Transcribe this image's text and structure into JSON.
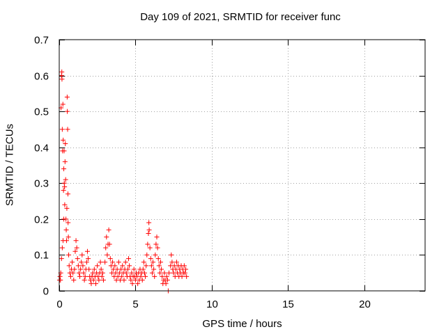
{
  "chart_data": {
    "type": "scatter",
    "title": "Day 109 of 2021, SRMTID for receiver func",
    "xlabel": "GPS time / hours",
    "ylabel": "SRMTID / TECUs",
    "xlim": [
      0,
      24
    ],
    "ylim": [
      0,
      0.7
    ],
    "xticks": [
      0,
      5,
      10,
      15,
      20
    ],
    "xtick_labels": [
      "0",
      "5",
      "10",
      "15",
      "20"
    ],
    "yticks": [
      0,
      0.1,
      0.2,
      0.3,
      0.4,
      0.5,
      0.6,
      0.7
    ],
    "ytick_labels": [
      "0",
      "0.1",
      "0.2",
      "0.3",
      "0.4",
      "0.5",
      "0.6",
      "0.7"
    ],
    "grid": true,
    "marker": "+",
    "color": "#ff0000",
    "series": [
      {
        "name": "SRMTID",
        "points": [
          [
            0.02,
            0.03
          ],
          [
            0.05,
            0.04
          ],
          [
            0.08,
            0.03
          ],
          [
            0.1,
            0.05
          ],
          [
            0.12,
            0.51
          ],
          [
            0.15,
            0.6
          ],
          [
            0.17,
            0.61
          ],
          [
            0.18,
            0.59
          ],
          [
            0.2,
            0.45
          ],
          [
            0.22,
            0.39
          ],
          [
            0.24,
            0.52
          ],
          [
            0.26,
            0.42
          ],
          [
            0.28,
            0.28
          ],
          [
            0.3,
            0.34
          ],
          [
            0.32,
            0.39
          ],
          [
            0.33,
            0.3
          ],
          [
            0.35,
            0.29
          ],
          [
            0.36,
            0.24
          ],
          [
            0.38,
            0.36
          ],
          [
            0.4,
            0.41
          ],
          [
            0.42,
            0.31
          ],
          [
            0.44,
            0.2
          ],
          [
            0.46,
            0.17
          ],
          [
            0.48,
            0.14
          ],
          [
            0.5,
            0.23
          ],
          [
            0.52,
            0.54
          ],
          [
            0.53,
            0.5
          ],
          [
            0.55,
            0.45
          ],
          [
            0.57,
            0.27
          ],
          [
            0.58,
            0.19
          ],
          [
            0.6,
            0.15
          ],
          [
            0.3,
            0.2
          ],
          [
            0.25,
            0.14
          ],
          [
            0.2,
            0.12
          ],
          [
            0.15,
            0.09
          ],
          [
            0.62,
            0.1
          ],
          [
            0.65,
            0.07
          ],
          [
            0.7,
            0.05
          ],
          [
            0.75,
            0.04
          ],
          [
            0.8,
            0.06
          ],
          [
            0.85,
            0.08
          ],
          [
            0.9,
            0.05
          ],
          [
            0.95,
            0.03
          ],
          [
            1.0,
            0.06
          ],
          [
            1.05,
            0.11
          ],
          [
            1.1,
            0.14
          ],
          [
            1.15,
            0.12
          ],
          [
            1.2,
            0.09
          ],
          [
            1.25,
            0.07
          ],
          [
            1.3,
            0.05
          ],
          [
            1.35,
            0.04
          ],
          [
            1.4,
            0.06
          ],
          [
            1.45,
            0.08
          ],
          [
            1.5,
            0.1
          ],
          [
            1.55,
            0.07
          ],
          [
            1.6,
            0.05
          ],
          [
            1.65,
            0.03
          ],
          [
            1.7,
            0.04
          ],
          [
            1.75,
            0.06
          ],
          [
            1.8,
            0.08
          ],
          [
            1.85,
            0.11
          ],
          [
            1.9,
            0.09
          ],
          [
            1.95,
            0.06
          ],
          [
            2.0,
            0.04
          ],
          [
            2.05,
            0.03
          ],
          [
            2.1,
            0.02
          ],
          [
            2.15,
            0.04
          ],
          [
            2.2,
            0.05
          ],
          [
            2.25,
            0.03
          ],
          [
            2.3,
            0.06
          ],
          [
            2.35,
            0.04
          ],
          [
            2.4,
            0.02
          ],
          [
            2.45,
            0.05
          ],
          [
            2.5,
            0.07
          ],
          [
            2.55,
            0.04
          ],
          [
            2.6,
            0.03
          ],
          [
            2.65,
            0.05
          ],
          [
            2.7,
            0.08
          ],
          [
            2.75,
            0.06
          ],
          [
            2.8,
            0.04
          ],
          [
            2.85,
            0.05
          ],
          [
            2.9,
            0.03
          ],
          [
            3.0,
            0.08
          ],
          [
            3.05,
            0.12
          ],
          [
            3.1,
            0.15
          ],
          [
            3.15,
            0.1
          ],
          [
            3.2,
            0.13
          ],
          [
            3.25,
            0.17
          ],
          [
            3.3,
            0.13
          ],
          [
            3.35,
            0.09
          ],
          [
            3.4,
            0.07
          ],
          [
            3.45,
            0.05
          ],
          [
            3.5,
            0.08
          ],
          [
            3.55,
            0.06
          ],
          [
            3.6,
            0.04
          ],
          [
            3.65,
            0.07
          ],
          [
            3.7,
            0.05
          ],
          [
            3.75,
            0.03
          ],
          [
            3.8,
            0.06
          ],
          [
            3.85,
            0.04
          ],
          [
            3.9,
            0.08
          ],
          [
            3.95,
            0.05
          ],
          [
            4.0,
            0.03
          ],
          [
            4.05,
            0.06
          ],
          [
            4.1,
            0.04
          ],
          [
            4.15,
            0.07
          ],
          [
            4.2,
            0.05
          ],
          [
            4.25,
            0.03
          ],
          [
            4.3,
            0.06
          ],
          [
            4.35,
            0.08
          ],
          [
            4.4,
            0.05
          ],
          [
            4.45,
            0.04
          ],
          [
            4.5,
            0.06
          ],
          [
            4.55,
            0.09
          ],
          [
            4.6,
            0.07
          ],
          [
            4.65,
            0.04
          ],
          [
            4.7,
            0.03
          ],
          [
            4.75,
            0.05
          ],
          [
            4.8,
            0.02
          ],
          [
            4.85,
            0.04
          ],
          [
            4.9,
            0.06
          ],
          [
            4.95,
            0.04
          ],
          [
            5.0,
            0.03
          ],
          [
            5.05,
            0.05
          ],
          [
            5.1,
            0.04
          ],
          [
            5.15,
            0.02
          ],
          [
            5.2,
            0.05
          ],
          [
            5.25,
            0.03
          ],
          [
            5.3,
            0.06
          ],
          [
            5.35,
            0.04
          ],
          [
            5.4,
            0.05
          ],
          [
            5.45,
            0.03
          ],
          [
            5.5,
            0.06
          ],
          [
            5.55,
            0.08
          ],
          [
            5.6,
            0.05
          ],
          [
            5.65,
            0.04
          ],
          [
            5.7,
            0.07
          ],
          [
            5.75,
            0.1
          ],
          [
            5.8,
            0.13
          ],
          [
            5.85,
            0.16
          ],
          [
            5.88,
            0.19
          ],
          [
            5.9,
            0.17
          ],
          [
            5.95,
            0.12
          ],
          [
            6.0,
            0.09
          ],
          [
            6.05,
            0.07
          ],
          [
            6.1,
            0.05
          ],
          [
            6.15,
            0.08
          ],
          [
            6.2,
            0.06
          ],
          [
            6.25,
            0.04
          ],
          [
            6.3,
            0.1
          ],
          [
            6.35,
            0.13
          ],
          [
            6.4,
            0.15
          ],
          [
            6.45,
            0.12
          ],
          [
            6.5,
            0.09
          ],
          [
            6.55,
            0.07
          ],
          [
            6.6,
            0.05
          ],
          [
            6.65,
            0.08
          ],
          [
            6.7,
            0.06
          ],
          [
            6.75,
            0.04
          ],
          [
            6.8,
            0.02
          ],
          [
            6.85,
            0.03
          ],
          [
            6.9,
            0.05
          ],
          [
            6.95,
            0.03
          ],
          [
            7.0,
            0.02
          ],
          [
            7.05,
            0.04
          ],
          [
            7.1,
            0.03
          ],
          [
            7.15,
            0.0
          ],
          [
            7.2,
            0.05
          ],
          [
            7.3,
            0.07
          ],
          [
            7.35,
            0.1
          ],
          [
            7.4,
            0.08
          ],
          [
            7.45,
            0.06
          ],
          [
            7.5,
            0.05
          ],
          [
            7.55,
            0.07
          ],
          [
            7.6,
            0.04
          ],
          [
            7.65,
            0.06
          ],
          [
            7.7,
            0.08
          ],
          [
            7.75,
            0.05
          ],
          [
            7.8,
            0.07
          ],
          [
            7.85,
            0.04
          ],
          [
            7.9,
            0.06
          ],
          [
            7.95,
            0.05
          ],
          [
            8.0,
            0.07
          ],
          [
            8.05,
            0.04
          ],
          [
            8.1,
            0.06
          ],
          [
            8.15,
            0.05
          ],
          [
            8.2,
            0.07
          ],
          [
            8.25,
            0.05
          ],
          [
            8.3,
            0.06
          ],
          [
            8.35,
            0.04
          ]
        ]
      }
    ]
  }
}
